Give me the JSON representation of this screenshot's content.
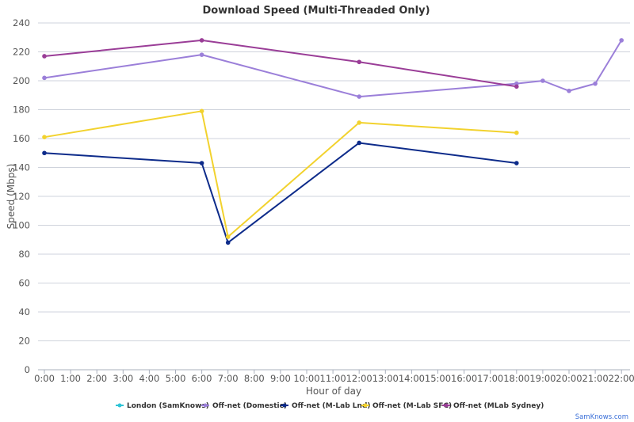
{
  "chart_data": {
    "type": "line",
    "title": "Download Speed (Multi-Threaded Only)",
    "xlabel": "Hour of day",
    "ylabel": "Speed (Mbps)",
    "ylim": [
      0,
      240
    ],
    "yticks": [
      "0",
      "20",
      "40",
      "60",
      "80",
      "100",
      "120",
      "140",
      "160",
      "180",
      "200",
      "220",
      "240"
    ],
    "categories": [
      "0:00",
      "1:00",
      "2:00",
      "3:00",
      "4:00",
      "5:00",
      "6:00",
      "7:00",
      "8:00",
      "9:00",
      "10:00",
      "11:00",
      "12:00",
      "13:00",
      "14:00",
      "15:00",
      "16:00",
      "17:00",
      "18:00",
      "19:00",
      "20:00",
      "21:00",
      "22:00"
    ],
    "grid": true,
    "legend_position": "bottom",
    "series": [
      {
        "name": "London (SamKnows)",
        "color": "#2ec4d6",
        "x": [],
        "values": []
      },
      {
        "name": "Off-net (Domestic)",
        "color": "#9b7fd9",
        "x": [
          0,
          6,
          12,
          18,
          19,
          20,
          21,
          22
        ],
        "values": [
          202,
          218,
          189,
          198,
          200,
          193,
          198,
          228
        ]
      },
      {
        "name": "Off-net (M-Lab Lnd)",
        "color": "#0d2b8a",
        "x": [
          0,
          6,
          7,
          12,
          18
        ],
        "values": [
          150,
          143,
          88,
          157,
          143
        ]
      },
      {
        "name": "Off-net (M-Lab SFC)",
        "color": "#f2d22e",
        "x": [
          0,
          6,
          7,
          12,
          18
        ],
        "values": [
          161,
          179,
          92,
          171,
          164
        ]
      },
      {
        "name": "Off-net (MLab Sydney)",
        "color": "#9a3d97",
        "x": [
          0,
          6,
          12,
          18
        ],
        "values": [
          217,
          228,
          213,
          196
        ]
      }
    ]
  },
  "credit": "SamKnows.com"
}
